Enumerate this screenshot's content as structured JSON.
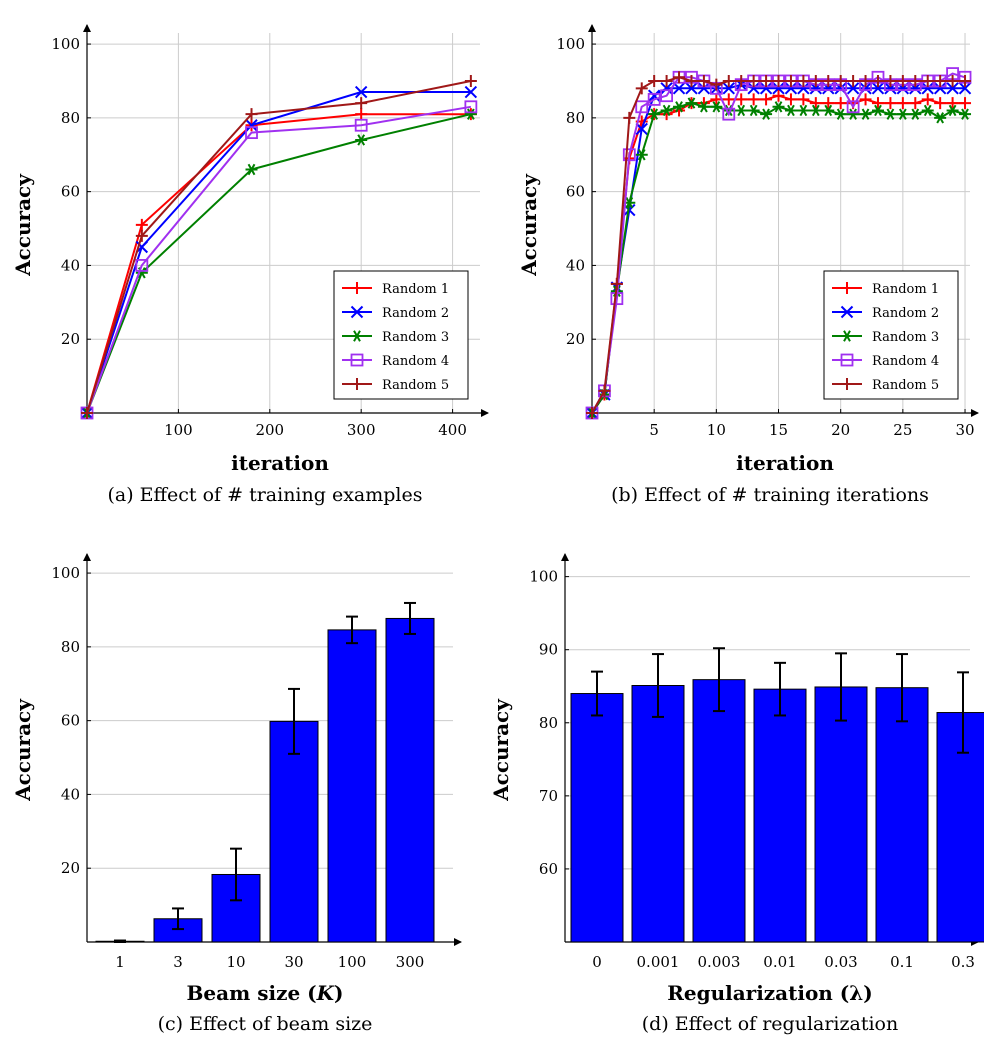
{
  "chart_data": [
    {
      "id": "a",
      "type": "line",
      "caption": "(a) Effect of # training examples",
      "xlabel": "iteration",
      "ylabel": "Accuracy",
      "xlim": [
        0,
        430
      ],
      "ylim": [
        0,
        103
      ],
      "xticks": [
        100,
        200,
        300,
        400
      ],
      "yticks": [
        20,
        40,
        60,
        80,
        100
      ],
      "grid": true,
      "legend_position": "bottom-right",
      "series": [
        {
          "name": "Random 1",
          "color": "#ff0000",
          "marker": "plus",
          "x": [
            0,
            60,
            180,
            300,
            420
          ],
          "y": [
            0,
            51,
            78,
            81,
            81
          ]
        },
        {
          "name": "Random 2",
          "color": "#0000ff",
          "marker": "x",
          "x": [
            0,
            60,
            180,
            300,
            420
          ],
          "y": [
            0,
            45,
            78,
            87,
            87
          ]
        },
        {
          "name": "Random 3",
          "color": "#008000",
          "marker": "star",
          "x": [
            0,
            60,
            180,
            300,
            420
          ],
          "y": [
            0,
            38,
            66,
            74,
            81
          ]
        },
        {
          "name": "Random 4",
          "color": "#a030f0",
          "marker": "square",
          "x": [
            0,
            60,
            180,
            300,
            420
          ],
          "y": [
            0,
            40,
            76,
            78,
            83
          ]
        },
        {
          "name": "Random 5",
          "color": "#a01818",
          "marker": "plus",
          "x": [
            0,
            60,
            180,
            300,
            420
          ],
          "y": [
            0,
            48,
            81,
            84,
            90
          ]
        }
      ]
    },
    {
      "id": "b",
      "type": "line",
      "caption": "(b) Effect of # training iterations",
      "xlabel": "iteration",
      "ylabel": "Accuracy",
      "xlim": [
        0,
        30.4
      ],
      "ylim": [
        0,
        103
      ],
      "xticks": [
        5,
        10,
        15,
        20,
        25,
        30
      ],
      "yticks": [
        20,
        40,
        60,
        80,
        100
      ],
      "grid": true,
      "legend_position": "bottom-right",
      "series": [
        {
          "name": "Random 1",
          "color": "#ff0000",
          "marker": "plus",
          "x": [
            0,
            1,
            2,
            3,
            4,
            5,
            6,
            7,
            8,
            9,
            10,
            11,
            12,
            13,
            14,
            15,
            16,
            17,
            18,
            19,
            20,
            21,
            22,
            23,
            24,
            25,
            26,
            27,
            28,
            29,
            30
          ],
          "y": [
            0,
            5,
            35,
            69,
            79,
            81,
            81,
            82,
            84,
            84,
            85,
            85,
            85,
            85,
            85,
            86,
            85,
            85,
            84,
            84,
            84,
            84,
            85,
            84,
            84,
            84,
            84,
            85,
            84,
            84,
            84
          ]
        },
        {
          "name": "Random 2",
          "color": "#0000ff",
          "marker": "x",
          "x": [
            0,
            1,
            2,
            3,
            4,
            5,
            6,
            7,
            8,
            9,
            10,
            11,
            12,
            13,
            14,
            15,
            16,
            17,
            18,
            19,
            20,
            21,
            22,
            23,
            24,
            25,
            26,
            27,
            28,
            29,
            30
          ],
          "y": [
            0,
            5,
            34,
            55,
            77,
            86,
            88,
            88,
            88,
            88,
            88,
            88,
            89,
            88,
            88,
            88,
            88,
            88,
            88,
            88,
            88,
            88,
            88,
            88,
            88,
            88,
            88,
            88,
            88,
            88,
            88
          ]
        },
        {
          "name": "Random 3",
          "color": "#008000",
          "marker": "star",
          "x": [
            0,
            1,
            2,
            3,
            4,
            5,
            6,
            7,
            8,
            9,
            10,
            11,
            12,
            13,
            14,
            15,
            16,
            17,
            18,
            19,
            20,
            21,
            22,
            23,
            24,
            25,
            26,
            27,
            28,
            29,
            30
          ],
          "y": [
            0,
            5,
            33,
            57,
            70,
            81,
            82,
            83,
            84,
            83,
            83,
            82,
            82,
            82,
            81,
            83,
            82,
            82,
            82,
            82,
            81,
            81,
            81,
            82,
            81,
            81,
            81,
            82,
            80,
            82,
            81
          ]
        },
        {
          "name": "Random 4",
          "color": "#a030f0",
          "marker": "square",
          "x": [
            0,
            1,
            2,
            3,
            4,
            5,
            6,
            7,
            8,
            9,
            10,
            11,
            12,
            13,
            14,
            15,
            16,
            17,
            18,
            19,
            20,
            21,
            22,
            23,
            24,
            25,
            26,
            27,
            28,
            29,
            30
          ],
          "y": [
            0,
            6,
            31,
            70,
            83,
            85,
            86,
            91,
            91,
            90,
            88,
            81,
            89,
            90,
            90,
            90,
            90,
            90,
            89,
            89,
            89,
            83,
            89,
            91,
            89,
            89,
            89,
            90,
            90,
            92,
            91
          ]
        },
        {
          "name": "Random 5",
          "color": "#a01818",
          "marker": "plus",
          "x": [
            0,
            1,
            2,
            3,
            4,
            5,
            6,
            7,
            8,
            9,
            10,
            11,
            12,
            13,
            14,
            15,
            16,
            17,
            18,
            19,
            20,
            21,
            22,
            23,
            24,
            25,
            26,
            27,
            28,
            29,
            30
          ],
          "y": [
            0,
            6,
            35,
            80,
            88,
            90,
            90,
            91,
            90,
            90,
            89,
            90,
            90,
            90,
            90,
            90,
            90,
            90,
            90,
            90,
            90,
            90,
            90,
            90,
            90,
            90,
            90,
            90,
            90,
            90,
            90
          ]
        }
      ]
    },
    {
      "id": "c",
      "type": "bar",
      "caption": "(c) Effect of beam size",
      "xlabel_prefix": "Beam size (",
      "xlabel_var": "K",
      "xlabel_suffix": ")",
      "ylabel": "Accuracy",
      "categories": [
        "1",
        "3",
        "10",
        "30",
        "100",
        "300"
      ],
      "values": [
        0.2,
        6.3,
        18.3,
        59.8,
        84.6,
        87.7
      ],
      "errors": [
        0.2,
        2.8,
        7.0,
        8.8,
        3.6,
        4.2
      ],
      "ylim": [
        0,
        103
      ],
      "yticks": [
        20,
        40,
        60,
        80,
        100
      ],
      "grid": true,
      "color": "#0000ff"
    },
    {
      "id": "d",
      "type": "bar",
      "caption": "(d) Effect of regularization",
      "xlabel_prefix": "Regularization (",
      "xlabel_var": "λ",
      "xlabel_suffix": ")",
      "ylabel": "Accuracy",
      "categories": [
        "0",
        "0.001",
        "0.003",
        "0.01",
        "0.03",
        "0.1",
        "0.3"
      ],
      "values": [
        84.0,
        85.1,
        85.9,
        84.6,
        84.9,
        84.8,
        81.4
      ],
      "errors": [
        3.0,
        4.3,
        4.3,
        3.6,
        4.6,
        4.6,
        5.5
      ],
      "ylim": [
        50,
        102
      ],
      "yticks": [
        60,
        70,
        80,
        90,
        100
      ],
      "grid": true,
      "color": "#0000ff"
    }
  ]
}
